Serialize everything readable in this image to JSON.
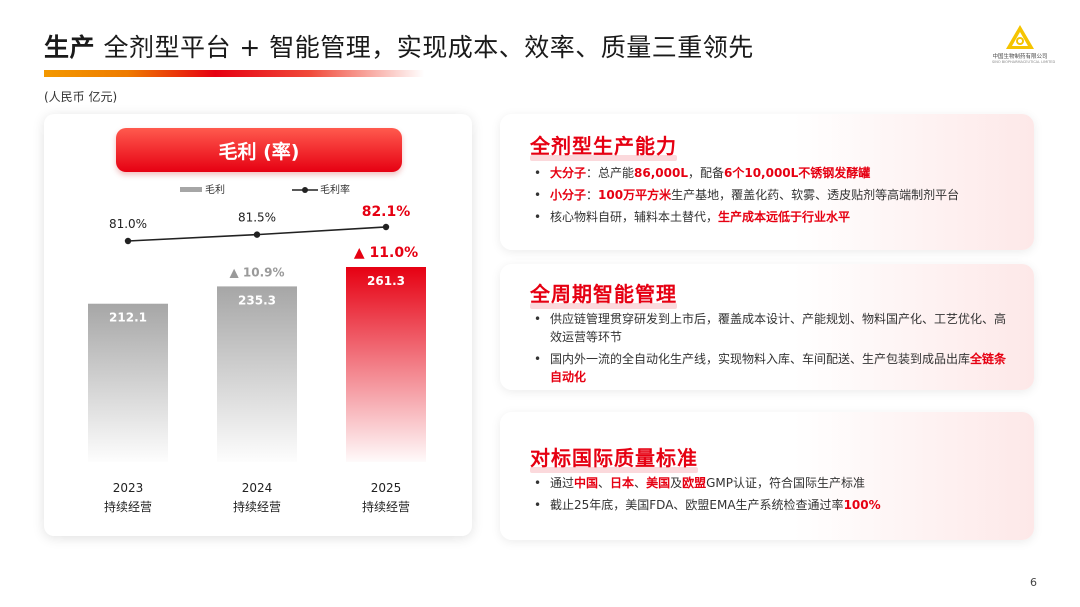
{
  "header": {
    "title_bold": "生产",
    "title_rest": " 全剂型平台 + 智能管理，实现成本、效率、质量三重领先"
  },
  "logo": {
    "company_cn": "中国生物制药有限公司",
    "company_en": "SINO BIOPHARMACEUTICAL LIMITED"
  },
  "unit_label": "(人民币 亿元)",
  "chart_header": "毛利 (率)",
  "chart_data": {
    "type": "bar",
    "categories": [
      "2023\n持续经营",
      "2024\n持续经营",
      "2025\n持续经营"
    ],
    "series": [
      {
        "name": "毛利",
        "type": "bar",
        "values": [
          212.1,
          235.3,
          261.3
        ],
        "labels": [
          "212.1",
          "235.3",
          "261.3"
        ]
      },
      {
        "name": "毛利率",
        "type": "line",
        "values": [
          81.0,
          81.5,
          82.1
        ],
        "labels": [
          "81.0%",
          "81.5%",
          "82.1%"
        ]
      }
    ],
    "growth_labels": [
      "",
      "▲ 10.9%",
      "▲ 11.0%"
    ],
    "category_years": [
      "2023",
      "2024",
      "2025"
    ],
    "category_sub": [
      "持续经营",
      "持续经营",
      "持续经营"
    ],
    "colors": {
      "gray": "#a6a6a6",
      "red": "#e60012",
      "text": "#222222"
    }
  },
  "cards": [
    {
      "title": "全剂型生产能力",
      "bullets": [
        [
          {
            "t": "大分子",
            "h": true
          },
          {
            "t": "：总产能",
            "h": false
          },
          {
            "t": "86,000L",
            "h": true
          },
          {
            "t": "，配备",
            "h": false
          },
          {
            "t": "6个10,000L不锈钢发酵罐",
            "h": true
          }
        ],
        [
          {
            "t": "小分子",
            "h": true
          },
          {
            "t": "：",
            "h": false
          },
          {
            "t": "100万平方米",
            "h": true
          },
          {
            "t": "生产基地，覆盖化药、软雾、透皮贴剂等高端制剂平台",
            "h": false
          }
        ],
        [
          {
            "t": "核心物料自研，辅料本土替代，",
            "h": false
          },
          {
            "t": "生产成本远低于行业水平",
            "h": true
          }
        ]
      ]
    },
    {
      "title": "全周期智能管理",
      "bullets": [
        [
          {
            "t": "供应链管理贯穿研发到上市后，覆盖成本设计、产能规划、物料国产化、工艺优化、高效运营等环节",
            "h": false
          }
        ],
        [
          {
            "t": "国内外一流的全自动化生产线，实现物料入库、车间配送、生产包装到成品出库",
            "h": false
          },
          {
            "t": "全链条自动化",
            "h": true
          }
        ]
      ]
    },
    {
      "title": "对标国际质量标准",
      "bullets": [
        [
          {
            "t": "通过",
            "h": false
          },
          {
            "t": "中国",
            "h": true
          },
          {
            "t": "、",
            "h": false
          },
          {
            "t": "日本",
            "h": true
          },
          {
            "t": "、",
            "h": false
          },
          {
            "t": "美国",
            "h": true
          },
          {
            "t": "及",
            "h": false
          },
          {
            "t": "欧盟",
            "h": true
          },
          {
            "t": "GMP认证，符合国际生产标准",
            "h": false
          }
        ],
        [
          {
            "t": "截止25年底，美国FDA、欧盟EMA生产系统检查通过率",
            "h": false
          },
          {
            "t": "100%",
            "h": true
          }
        ]
      ]
    }
  ],
  "page_number": "6"
}
